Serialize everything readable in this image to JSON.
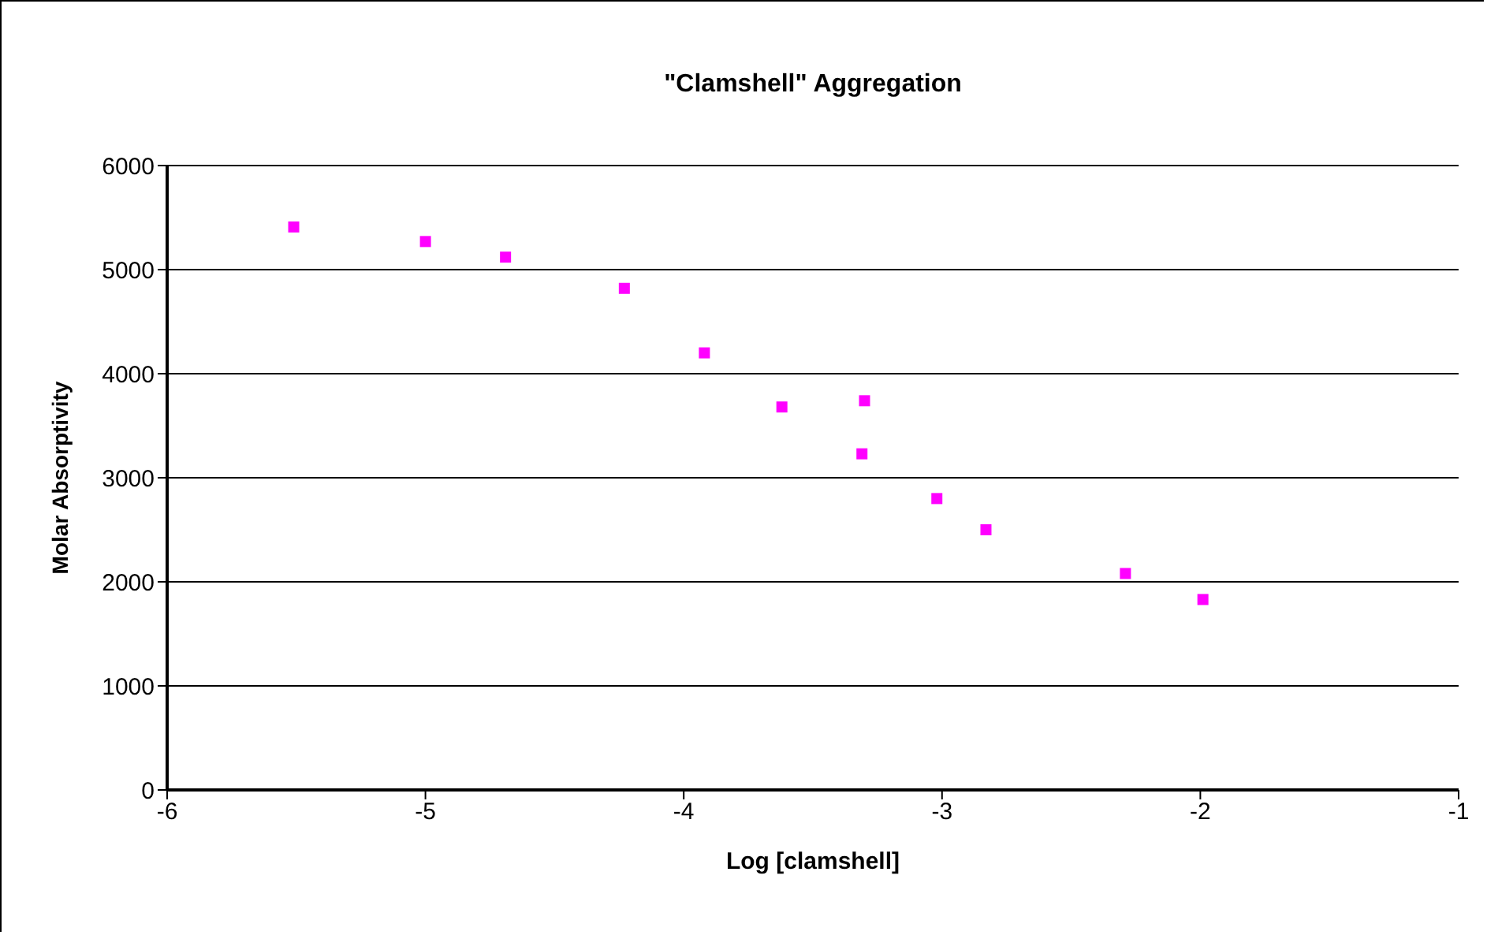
{
  "chart_data": {
    "type": "scatter",
    "title": "\"Clamshell\" Aggregation",
    "xlabel": "Log [clamshell]",
    "ylabel": "Molar Absorptivity",
    "x": [
      -5.51,
      -5.0,
      -4.69,
      -4.23,
      -3.92,
      -3.62,
      -3.3,
      -3.31,
      -3.02,
      -2.83,
      -2.29,
      -1.99
    ],
    "series": [
      {
        "color": "#ff00ff",
        "values": [
          5410,
          5270,
          5120,
          4820,
          4200,
          3680,
          3740,
          3230,
          2800,
          2500,
          2080,
          1830
        ]
      }
    ],
    "xlim": [
      -6,
      -1
    ],
    "xticks": [
      -6,
      -5,
      -4,
      -3,
      -2,
      -1
    ],
    "ylim": [
      0,
      6000
    ],
    "yticks": [
      0,
      1000,
      2000,
      3000,
      4000,
      5000,
      6000
    ],
    "grid": "y",
    "marker": "square"
  }
}
